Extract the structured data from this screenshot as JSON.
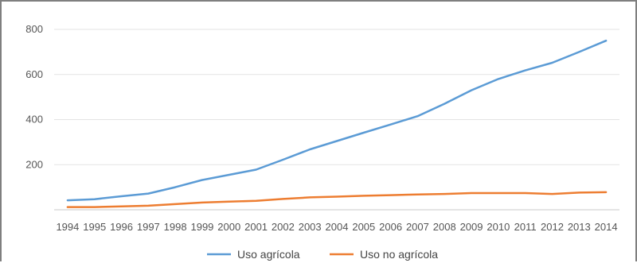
{
  "chart_data": {
    "type": "line",
    "title": "",
    "xlabel": "",
    "ylabel": "",
    "x": [
      "1994",
      "1995",
      "1996",
      "1997",
      "1998",
      "1999",
      "2000",
      "2001",
      "2002",
      "2003",
      "2004",
      "2005",
      "2006",
      "2007",
      "2008",
      "2009",
      "2010",
      "2011",
      "2012",
      "2013",
      "2014"
    ],
    "ylim": [
      0,
      800
    ],
    "yticks": [
      200,
      400,
      600,
      800
    ],
    "grid": "horizontal",
    "legend": "bottom",
    "series": [
      {
        "name": "Uso agrícola",
        "color": "#5b9bd5",
        "values": [
          42,
          47,
          60,
          72,
          100,
          132,
          155,
          178,
          222,
          268,
          305,
          342,
          378,
          415,
          470,
          530,
          580,
          618,
          652,
          700,
          750
        ]
      },
      {
        "name": "Uso no agrícola",
        "color": "#ed7d31",
        "values": [
          12,
          12,
          15,
          18,
          25,
          32,
          36,
          40,
          48,
          55,
          58,
          62,
          65,
          68,
          70,
          74,
          74,
          74,
          70,
          76,
          78
        ]
      }
    ]
  }
}
